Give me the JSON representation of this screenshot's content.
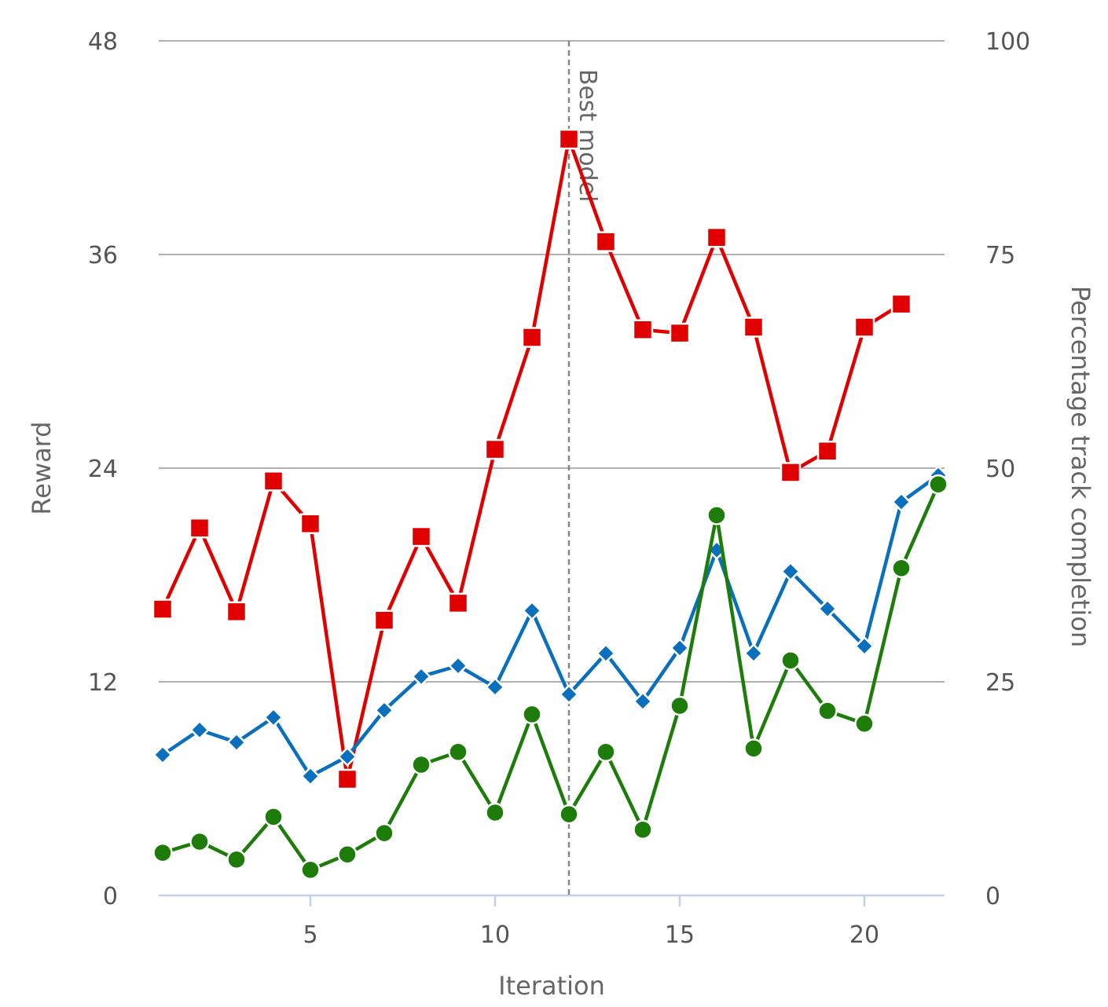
{
  "chart_data": {
    "type": "line",
    "xlabel": "Iteration",
    "ylabel": "Reward",
    "y2label": "Percentage track completion",
    "xlim": [
      1,
      22
    ],
    "ylim": [
      0,
      48
    ],
    "y2lim": [
      0,
      100
    ],
    "x_ticks": [
      5,
      10,
      15,
      20
    ],
    "y_ticks": [
      0,
      12,
      24,
      36,
      48
    ],
    "y2_ticks": [
      0,
      25,
      50,
      75,
      100
    ],
    "grid": true,
    "annotation": {
      "text": "Best model",
      "x": 12
    },
    "x": [
      1,
      2,
      3,
      4,
      5,
      6,
      7,
      8,
      9,
      10,
      11,
      12,
      13,
      14,
      15,
      16,
      17,
      18,
      19,
      20,
      21,
      22
    ],
    "series": [
      {
        "axis": "y2",
        "color": "#e00000",
        "marker": "square",
        "values": [
          33.5,
          43,
          33.2,
          48.5,
          43.5,
          13.6,
          32.2,
          42,
          34.2,
          52.2,
          65.3,
          88.5,
          76.5,
          66.2,
          65.8,
          77,
          66.5,
          49.5,
          52,
          66.5,
          69.2,
          null
        ]
      },
      {
        "axis": "y",
        "color": "#0a6fbd",
        "marker": "diamond",
        "values": [
          7.9,
          9.3,
          8.6,
          10.0,
          6.7,
          7.8,
          10.4,
          12.3,
          12.9,
          11.7,
          16.0,
          11.3,
          13.6,
          10.9,
          13.9,
          19.4,
          13.6,
          18.2,
          16.1,
          14.0,
          22.1,
          23.6
        ]
      },
      {
        "axis": "y2",
        "color": "#1e7d0a",
        "marker": "circle",
        "values": [
          5.0,
          6.3,
          4.2,
          9.2,
          3.0,
          4.8,
          7.3,
          15.3,
          16.8,
          9.7,
          21.2,
          9.5,
          16.8,
          7.7,
          22.2,
          44.5,
          17.2,
          27.5,
          21.6,
          20.1,
          38.3,
          48.1
        ]
      }
    ]
  }
}
